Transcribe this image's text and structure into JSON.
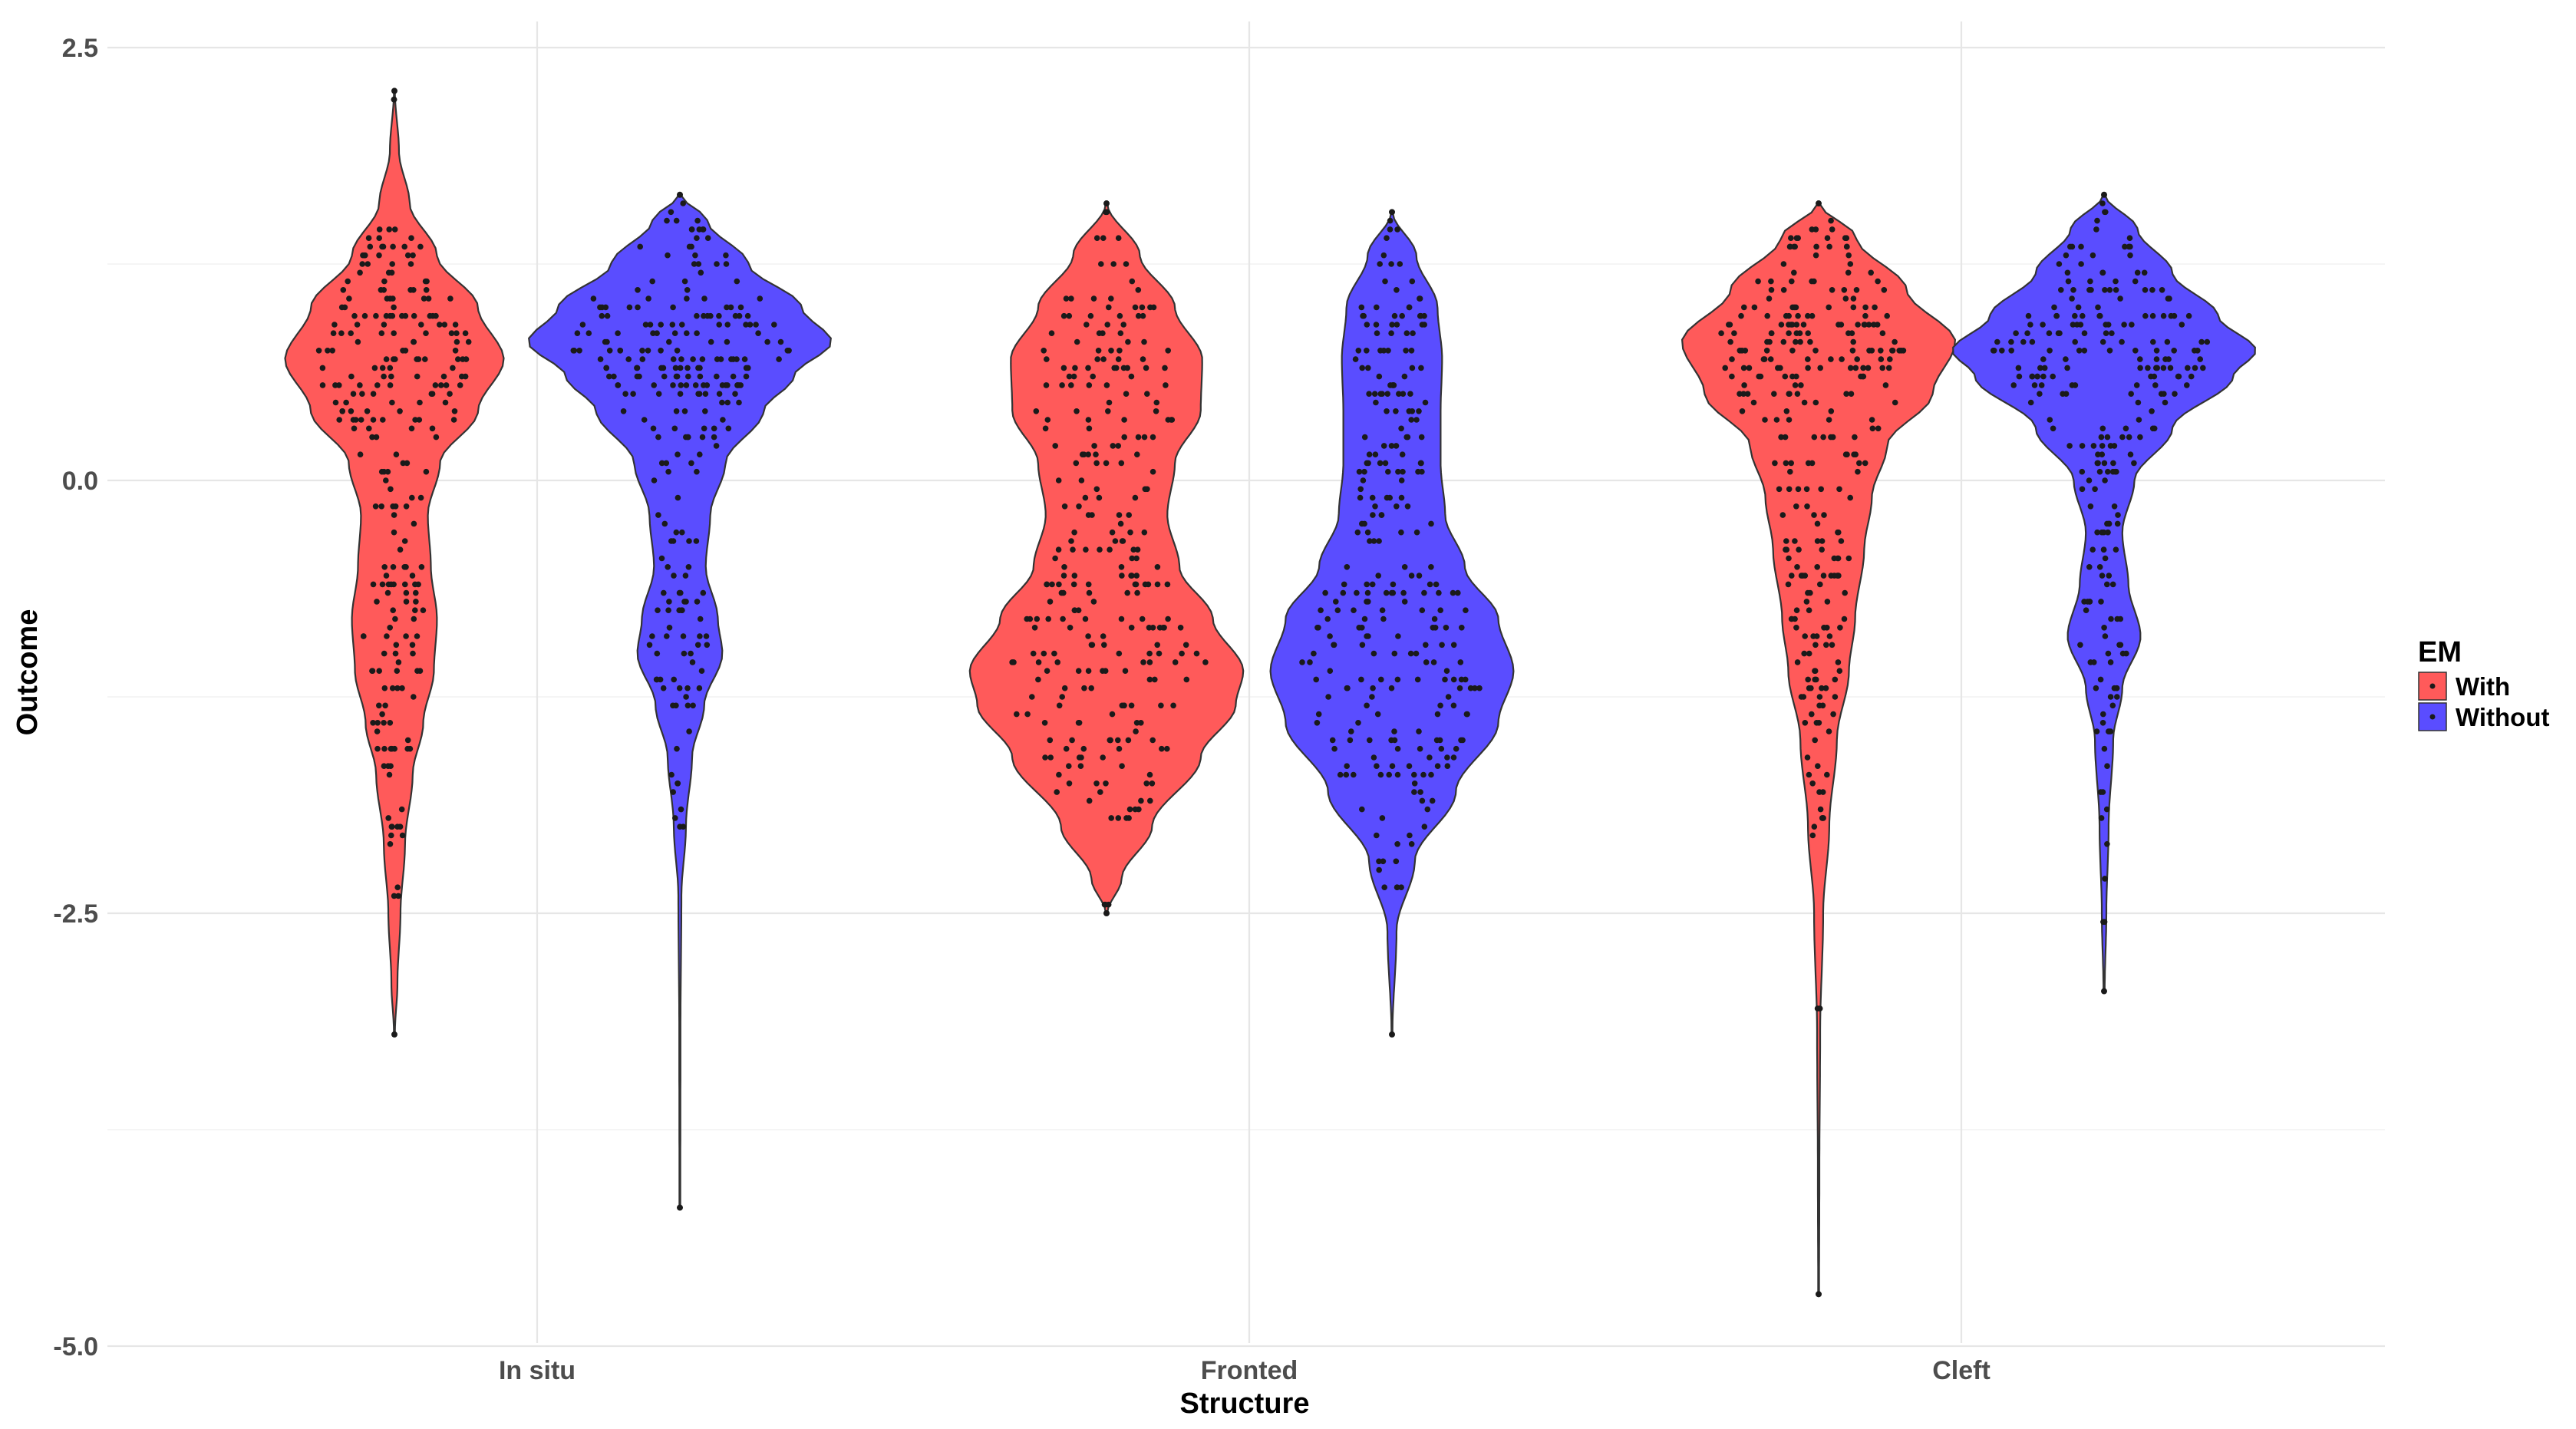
{
  "chart_data": {
    "type": "violin",
    "title": "",
    "xlabel": "Structure",
    "ylabel": "Outcome",
    "ylim": [
      -5.0,
      2.5
    ],
    "yticks": [
      2.5,
      0.0,
      -2.5,
      -5.0
    ],
    "ytick_labels": [
      "2.5",
      "0.0",
      "-2.5",
      "-5.0"
    ],
    "categories": [
      "In situ",
      "Fronted",
      "Cleft"
    ],
    "grid": true,
    "points_overlay": true,
    "legend": {
      "title": "EM",
      "position": "right",
      "entries": [
        {
          "name": "With",
          "color": "#ff5a5a"
        },
        {
          "name": "Without",
          "color": "#5a4dff"
        }
      ]
    },
    "series": [
      {
        "name": "With",
        "color": "#ff5a5a",
        "violins": [
          {
            "category": "In situ",
            "min": -3.2,
            "max": 2.25,
            "profile": [
              [
                -3.2,
                0.003
              ],
              [
                -2.9,
                0.02
              ],
              [
                -2.5,
                0.04
              ],
              [
                -2.1,
                0.07
              ],
              [
                -1.7,
                0.12
              ],
              [
                -1.4,
                0.19
              ],
              [
                -1.1,
                0.26
              ],
              [
                -0.8,
                0.28
              ],
              [
                -0.5,
                0.24
              ],
              [
                -0.2,
                0.22
              ],
              [
                0.1,
                0.3
              ],
              [
                0.4,
                0.55
              ],
              [
                0.7,
                0.72
              ],
              [
                1.0,
                0.55
              ],
              [
                1.3,
                0.28
              ],
              [
                1.6,
                0.1
              ],
              [
                1.9,
                0.03
              ],
              [
                2.25,
                0.003
              ]
            ],
            "cores": [
              [
                -2.5,
                -1.8,
                12
              ],
              [
                -1.8,
                -1.2,
                22
              ],
              [
                -1.2,
                -0.3,
                50
              ],
              [
                -0.3,
                0.3,
                22
              ],
              [
                0.3,
                1.1,
                115
              ],
              [
                1.1,
                1.45,
                30
              ],
              [
                2.2,
                2.25,
                2
              ]
            ]
          },
          {
            "category": "Fronted",
            "min": -2.5,
            "max": 1.6,
            "profile": [
              [
                -2.5,
                0.005
              ],
              [
                -2.3,
                0.1
              ],
              [
                -2.0,
                0.3
              ],
              [
                -1.6,
                0.62
              ],
              [
                -1.3,
                0.85
              ],
              [
                -1.1,
                0.9
              ],
              [
                -0.8,
                0.7
              ],
              [
                -0.5,
                0.48
              ],
              [
                -0.2,
                0.4
              ],
              [
                0.1,
                0.45
              ],
              [
                0.4,
                0.62
              ],
              [
                0.7,
                0.63
              ],
              [
                1.0,
                0.45
              ],
              [
                1.3,
                0.22
              ],
              [
                1.6,
                0.005
              ]
            ],
            "cores": [
              [
                -2.0,
                -1.6,
                22
              ],
              [
                -1.6,
                -0.5,
                120
              ],
              [
                -0.5,
                0.2,
                45
              ],
              [
                0.2,
                1.0,
                70
              ],
              [
                1.0,
                1.6,
                18
              ],
              [
                -2.5,
                -2.4,
                3
              ]
            ]
          },
          {
            "category": "Cleft",
            "min": -4.7,
            "max": 1.6,
            "profile": [
              [
                -4.7,
                0.003
              ],
              [
                -4.0,
                0.005
              ],
              [
                -3.2,
                0.01
              ],
              [
                -2.5,
                0.03
              ],
              [
                -2.0,
                0.07
              ],
              [
                -1.5,
                0.12
              ],
              [
                -1.1,
                0.2
              ],
              [
                -0.8,
                0.24
              ],
              [
                -0.4,
                0.3
              ],
              [
                -0.1,
                0.35
              ],
              [
                0.2,
                0.45
              ],
              [
                0.5,
                0.75
              ],
              [
                0.8,
                0.9
              ],
              [
                1.1,
                0.58
              ],
              [
                1.4,
                0.25
              ],
              [
                1.6,
                0.005
              ]
            ],
            "cores": [
              [
                -2.2,
                -1.3,
                20
              ],
              [
                -1.3,
                -0.5,
                55
              ],
              [
                -0.5,
                0.2,
                45
              ],
              [
                0.2,
                0.6,
                40
              ],
              [
                0.6,
                1.0,
                95
              ],
              [
                1.0,
                1.5,
                40
              ],
              [
                -3.05,
                -3.0,
                2
              ]
            ]
          }
        ]
      },
      {
        "name": "Without",
        "color": "#5a4dff",
        "violins": [
          {
            "category": "In situ",
            "min": -4.2,
            "max": 1.65,
            "profile": [
              [
                -4.2,
                0.003
              ],
              [
                -3.2,
                0.004
              ],
              [
                -2.4,
                0.01
              ],
              [
                -2.0,
                0.04
              ],
              [
                -1.6,
                0.08
              ],
              [
                -1.3,
                0.16
              ],
              [
                -1.0,
                0.28
              ],
              [
                -0.8,
                0.25
              ],
              [
                -0.5,
                0.17
              ],
              [
                -0.2,
                0.2
              ],
              [
                0.1,
                0.3
              ],
              [
                0.4,
                0.55
              ],
              [
                0.6,
                0.75
              ],
              [
                0.8,
                1.0
              ],
              [
                1.0,
                0.8
              ],
              [
                1.25,
                0.45
              ],
              [
                1.5,
                0.18
              ],
              [
                1.65,
                0.005
              ]
            ],
            "cores": [
              [
                -2.0,
                -1.4,
                10
              ],
              [
                -1.4,
                -0.7,
                35
              ],
              [
                -0.7,
                0.0,
                20
              ],
              [
                0.0,
                0.5,
                30
              ],
              [
                0.5,
                1.0,
                120
              ],
              [
                1.0,
                1.6,
                35
              ]
            ]
          },
          {
            "category": "Fronted",
            "min": -3.2,
            "max": 1.55,
            "profile": [
              [
                -3.2,
                0.003
              ],
              [
                -2.6,
                0.03
              ],
              [
                -2.2,
                0.15
              ],
              [
                -1.8,
                0.42
              ],
              [
                -1.4,
                0.7
              ],
              [
                -1.1,
                0.8
              ],
              [
                -0.8,
                0.7
              ],
              [
                -0.5,
                0.48
              ],
              [
                -0.2,
                0.35
              ],
              [
                0.1,
                0.32
              ],
              [
                0.4,
                0.32
              ],
              [
                0.7,
                0.33
              ],
              [
                1.0,
                0.3
              ],
              [
                1.3,
                0.16
              ],
              [
                1.55,
                0.004
              ]
            ],
            "cores": [
              [
                -2.4,
                -1.8,
                18
              ],
              [
                -1.8,
                -0.6,
                130
              ],
              [
                -0.6,
                0.2,
                50
              ],
              [
                0.2,
                1.0,
                60
              ],
              [
                1.0,
                1.5,
                15
              ]
            ]
          },
          {
            "category": "Cleft",
            "min": -2.95,
            "max": 1.65,
            "profile": [
              [
                -2.95,
                0.004
              ],
              [
                -2.5,
                0.015
              ],
              [
                -2.0,
                0.03
              ],
              [
                -1.5,
                0.06
              ],
              [
                -1.2,
                0.12
              ],
              [
                -0.9,
                0.24
              ],
              [
                -0.6,
                0.16
              ],
              [
                -0.3,
                0.12
              ],
              [
                0.0,
                0.2
              ],
              [
                0.3,
                0.45
              ],
              [
                0.6,
                0.85
              ],
              [
                0.75,
                1.0
              ],
              [
                0.95,
                0.75
              ],
              [
                1.2,
                0.45
              ],
              [
                1.45,
                0.22
              ],
              [
                1.65,
                0.005
              ]
            ],
            "cores": [
              [
                -2.6,
                -1.4,
                14
              ],
              [
                -1.4,
                -0.7,
                28
              ],
              [
                -0.7,
                0.0,
                28
              ],
              [
                0.0,
                0.5,
                38
              ],
              [
                0.5,
                1.0,
                105
              ],
              [
                1.0,
                1.6,
                40
              ]
            ]
          }
        ]
      }
    ]
  }
}
